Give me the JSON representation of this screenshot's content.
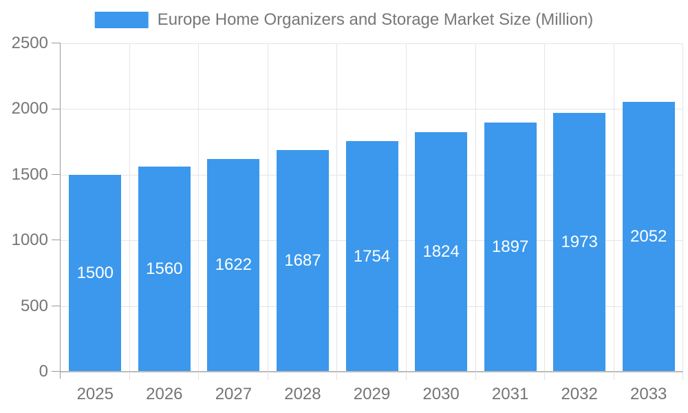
{
  "legend": {
    "label": "Europe Home Organizers and Storage Market Size (Million)"
  },
  "chart_data": {
    "type": "bar",
    "title": "Europe Home Organizers and Storage Market Size (Million)",
    "categories": [
      "2025",
      "2026",
      "2027",
      "2028",
      "2029",
      "2030",
      "2031",
      "2032",
      "2033"
    ],
    "values": [
      1500,
      1560,
      1622,
      1687,
      1754,
      1824,
      1897,
      1973,
      2052
    ],
    "series": [
      {
        "name": "Europe Home Organizers and Storage Market Size (Million)",
        "values": [
          1500,
          1560,
          1622,
          1687,
          1754,
          1824,
          1897,
          1973,
          2052
        ]
      }
    ],
    "xlabel": "",
    "ylabel": "",
    "ylim": [
      0,
      2500
    ],
    "yticks": [
      0,
      500,
      1000,
      1500,
      2000,
      2500
    ],
    "grid": true,
    "legend_position": "top",
    "bar_color": "#3b98ec",
    "bar_label_color": "#ffffff"
  },
  "colors": {
    "background": "#ffffff",
    "grid_line": "#e4e4e4",
    "axis_line": "#999999",
    "baseline": "#bbbbbb",
    "category_tick": "#e0e0e0",
    "axis_text": "#757575",
    "legend_text": "#777777"
  }
}
